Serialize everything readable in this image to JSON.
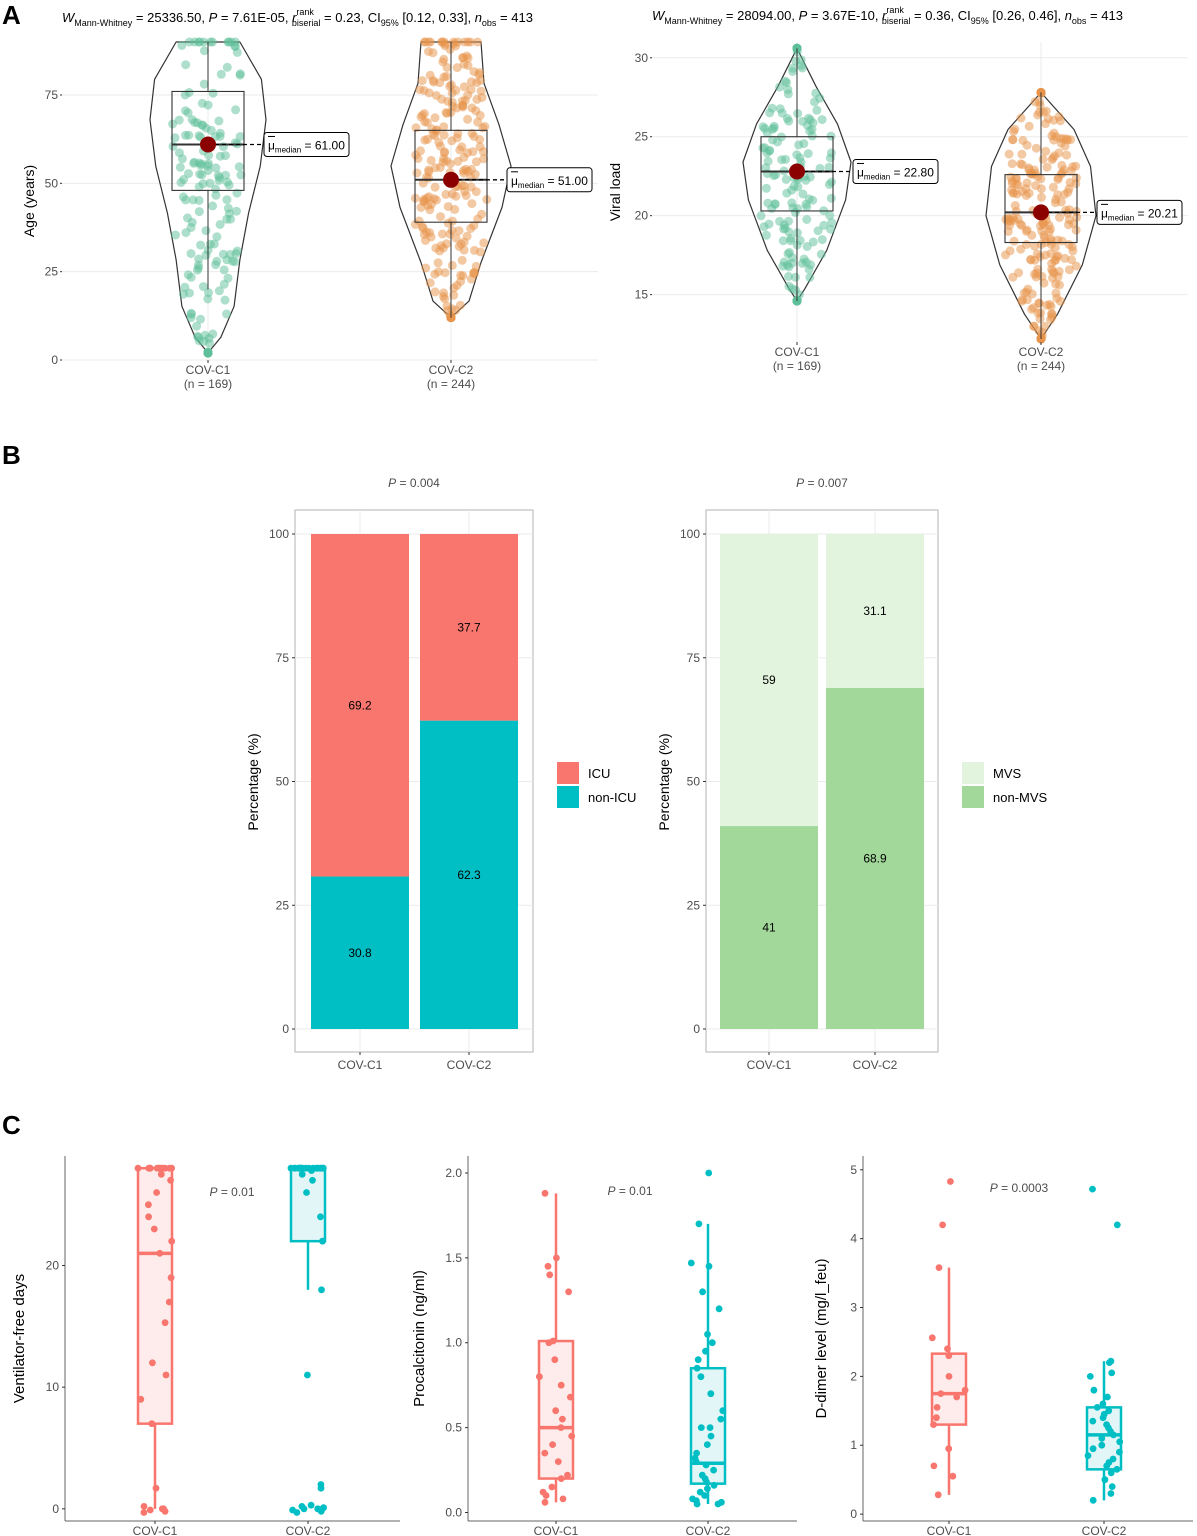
{
  "panel_labels": [
    "A",
    "B",
    "C"
  ],
  "colors": {
    "c1_point": "#5dbf9a",
    "c2_point": "#e8944a",
    "median_dot": "#8b0000",
    "icu": "#f8766d",
    "non_icu": "#00bfc4",
    "mvs": "#e3f4de",
    "non_mvs": "#a2d89a",
    "grid": "#ebebeb"
  },
  "chart_data": [
    {
      "id": "A1",
      "type": "violin",
      "stat_text": {
        "parts": [
          "W",
          "Mann-Whitney",
          " = 25336.50, ",
          "P",
          " = 7.61E-05, ",
          "r",
          "rank",
          "biserial",
          " = 0.23, CI",
          "95%",
          " [0.12, 0.33], ",
          "n",
          "obs",
          " = 413"
        ]
      },
      "ylabel": "Age (years)",
      "ylim": [
        0,
        90
      ],
      "yticks": [
        0,
        25,
        50,
        75
      ],
      "categories": [
        "COV-C1",
        "COV-C2"
      ],
      "category_n": [
        "(n = 169)",
        "(n = 244)"
      ],
      "medians": [
        61.0,
        51.0
      ],
      "median_labels": [
        {
          "mu": "μ",
          "sub": "median",
          "val": " = 61.00"
        },
        {
          "mu": "μ",
          "sub": "median",
          "val": " = 51.00"
        }
      ],
      "box": [
        {
          "q1": 48,
          "median": 61,
          "q3": 76,
          "wmin": 20,
          "wmax": 90
        },
        {
          "q1": 39,
          "median": 51,
          "q3": 65,
          "wmin": 12,
          "wmax": 90
        }
      ],
      "range": [
        [
          2,
          90
        ],
        [
          12,
          90
        ]
      ],
      "point_count": [
        169,
        244
      ]
    },
    {
      "id": "A2",
      "type": "violin",
      "stat_text": {
        "parts": [
          "W",
          "Mann-Whitney",
          " = 28094.00, ",
          "P",
          " = 3.67E-10, ",
          "r",
          "rank",
          "biserial",
          " = 0.36, CI",
          "95%",
          " [0.26, 0.46], ",
          "n",
          "obs",
          " = 413"
        ]
      },
      "ylabel": "Viral load",
      "ylim": [
        12,
        31
      ],
      "yticks": [
        15,
        20,
        25,
        30
      ],
      "categories": [
        "COV-C1",
        "COV-C2"
      ],
      "category_n": [
        "(n = 169)",
        "(n = 244)"
      ],
      "medians": [
        22.8,
        20.21
      ],
      "median_labels": [
        {
          "mu": "μ",
          "sub": "median",
          "val": " = 22.80"
        },
        {
          "mu": "μ",
          "sub": "median",
          "val": " = 20.21"
        }
      ],
      "box": [
        {
          "q1": 20.3,
          "median": 22.8,
          "q3": 25.0,
          "wmin": 14.6,
          "wmax": 30.6
        },
        {
          "q1": 18.3,
          "median": 20.21,
          "q3": 22.6,
          "wmin": 12.2,
          "wmax": 27.8
        }
      ],
      "range": [
        [
          14.6,
          30.6
        ],
        [
          12.2,
          27.8
        ]
      ],
      "point_count": [
        169,
        244
      ]
    },
    {
      "id": "B1",
      "type": "stacked_bar",
      "p_text": {
        "p": "P",
        "rest": " = 0.004"
      },
      "ylabel": "Percentage (%)",
      "ylim": [
        0,
        100
      ],
      "yticks": [
        0,
        25,
        50,
        75,
        100
      ],
      "categories": [
        "COV-C1",
        "COV-C2"
      ],
      "series": [
        {
          "name": "non-ICU",
          "values": [
            30.8,
            62.3
          ],
          "labels": [
            "30.8",
            "62.3"
          ]
        },
        {
          "name": "ICU",
          "values": [
            69.2,
            37.7
          ],
          "labels": [
            "69.2",
            "37.7"
          ]
        }
      ],
      "legend": [
        "ICU",
        "non-ICU"
      ]
    },
    {
      "id": "B2",
      "type": "stacked_bar",
      "p_text": {
        "p": "P",
        "rest": " = 0.007"
      },
      "ylabel": "Percentage (%)",
      "ylim": [
        0,
        100
      ],
      "yticks": [
        0,
        25,
        50,
        75,
        100
      ],
      "categories": [
        "COV-C1",
        "COV-C2"
      ],
      "series": [
        {
          "name": "non-MVS",
          "values": [
            41,
            68.9
          ],
          "labels": [
            "41",
            "68.9"
          ]
        },
        {
          "name": "MVS",
          "values": [
            59,
            31.1
          ],
          "labels": [
            "59",
            "31.1"
          ]
        }
      ],
      "legend": [
        "MVS",
        "non-MVS"
      ]
    },
    {
      "id": "C1",
      "type": "box",
      "p_text": {
        "p": "P",
        "rest": " = 0.01"
      },
      "ylabel": "Ventilator-free days",
      "ylim": [
        -1,
        29
      ],
      "yticks": [
        0,
        10,
        20
      ],
      "categories": [
        "COV-C1",
        "COV-C2"
      ],
      "box": [
        {
          "q1": 7,
          "median": 21,
          "q3": 28,
          "wmin": 0,
          "wmax": 28
        },
        {
          "q1": 22,
          "median": 28,
          "q3": 28,
          "wmin": 18,
          "wmax": 28
        }
      ],
      "points": [
        [
          -0.3,
          -0.2,
          -0.1,
          0,
          0,
          0.2,
          1.7,
          7,
          9,
          11,
          12,
          15.3,
          17,
          19,
          21,
          22,
          23,
          24,
          25,
          26,
          27,
          27.5,
          28,
          28,
          28,
          28,
          28,
          28,
          28,
          28,
          28,
          28,
          28,
          28
        ],
        [
          -0.3,
          -0.2,
          -0.1,
          0,
          0,
          0,
          0.1,
          0.2,
          0.3,
          1.7,
          2,
          11,
          18,
          22,
          24,
          26,
          27,
          27.5,
          27.8,
          28,
          28,
          28,
          28,
          28,
          28,
          28,
          28,
          28,
          28,
          28,
          28,
          28,
          28,
          28,
          28,
          28,
          28,
          28,
          28
        ]
      ]
    },
    {
      "id": "C2",
      "type": "box",
      "p_text": {
        "p": "P",
        "rest": " = 0.01"
      },
      "ylabel": "Procalcitonin (ng/ml)",
      "ylim": [
        -0.05,
        2.1
      ],
      "yticks": [
        0.0,
        0.5,
        1.0,
        1.5,
        2.0
      ],
      "ytick_labels": [
        "0.0",
        "0.5",
        "1.0",
        "1.5",
        "2.0"
      ],
      "categories": [
        "COV-C1",
        "COV-C2"
      ],
      "box": [
        {
          "q1": 0.2,
          "median": 0.5,
          "q3": 1.01,
          "wmin": 0.06,
          "wmax": 1.88
        },
        {
          "q1": 0.17,
          "median": 0.29,
          "q3": 0.85,
          "wmin": 0.05,
          "wmax": 1.7
        }
      ],
      "points": [
        [
          0.06,
          0.08,
          0.1,
          0.12,
          0.15,
          0.2,
          0.22,
          0.3,
          0.35,
          0.4,
          0.45,
          0.5,
          0.55,
          0.6,
          0.68,
          0.75,
          0.8,
          0.9,
          1.0,
          1.01,
          1.3,
          1.4,
          1.45,
          1.5,
          1.88
        ],
        [
          0.05,
          0.05,
          0.06,
          0.07,
          0.08,
          0.1,
          0.12,
          0.14,
          0.16,
          0.18,
          0.2,
          0.22,
          0.25,
          0.28,
          0.3,
          0.32,
          0.35,
          0.4,
          0.45,
          0.5,
          0.5,
          0.55,
          0.6,
          0.7,
          0.8,
          0.85,
          0.9,
          0.95,
          1.0,
          1.05,
          1.2,
          1.3,
          1.45,
          1.47,
          1.7,
          2.0
        ]
      ]
    },
    {
      "id": "C3",
      "type": "box",
      "p_text": {
        "p": "P",
        "rest": " = 0.0003"
      },
      "ylabel": "D-dimer level (mg/l_feu)",
      "ylim": [
        -0.1,
        5.2
      ],
      "yticks": [
        0,
        1,
        2,
        3,
        4,
        5
      ],
      "categories": [
        "COV-C1",
        "COV-C2"
      ],
      "box": [
        {
          "q1": 1.3,
          "median": 1.75,
          "q3": 2.33,
          "wmin": 0.28,
          "wmax": 3.58
        },
        {
          "q1": 0.65,
          "median": 1.15,
          "q3": 1.55,
          "wmin": 0.2,
          "wmax": 2.22
        }
      ],
      "points": [
        [
          0.28,
          0.55,
          0.7,
          0.95,
          1.3,
          1.4,
          1.55,
          1.7,
          1.75,
          1.8,
          2.0,
          2.3,
          2.4,
          2.56,
          3.58,
          4.2,
          4.83
        ],
        [
          0.2,
          0.3,
          0.4,
          0.5,
          0.6,
          0.65,
          0.7,
          0.75,
          0.8,
          0.85,
          0.9,
          0.95,
          1.0,
          1.05,
          1.1,
          1.15,
          1.2,
          1.25,
          1.3,
          1.35,
          1.4,
          1.45,
          1.5,
          1.55,
          1.6,
          1.7,
          1.8,
          2.0,
          2.05,
          2.2,
          2.22,
          4.2,
          4.72
        ]
      ]
    }
  ]
}
